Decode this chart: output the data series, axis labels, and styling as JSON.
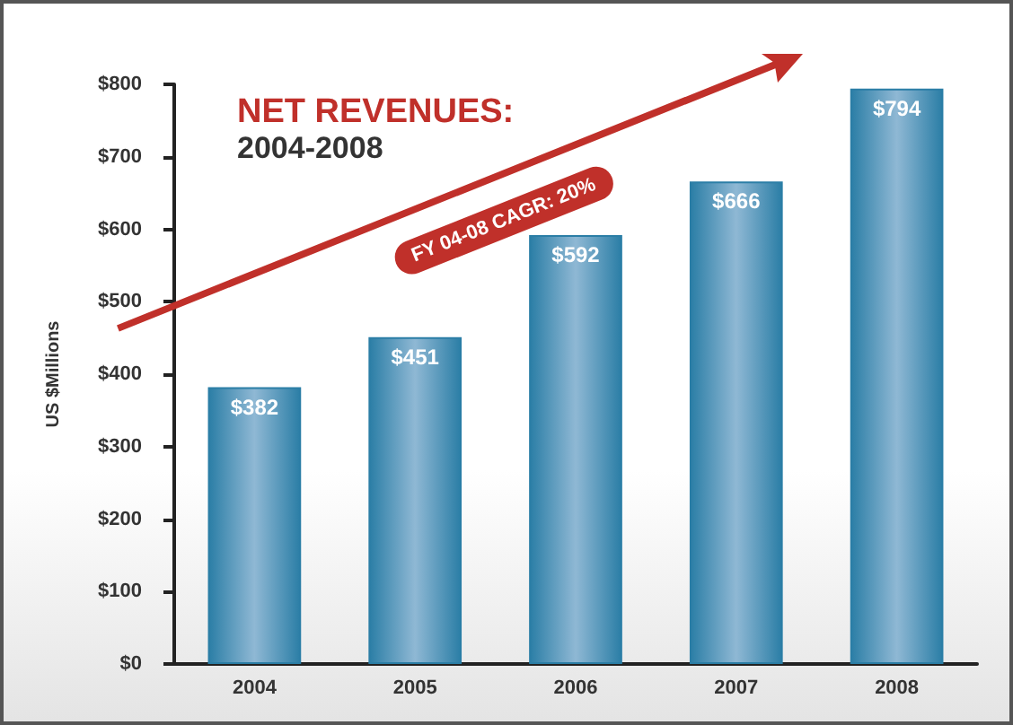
{
  "chart_data": {
    "type": "bar",
    "title": "NET REVENUES:",
    "subtitle": "2004-2008",
    "ylabel": "US $Millions",
    "categories": [
      "2004",
      "2005",
      "2006",
      "2007",
      "2008"
    ],
    "values": [
      382,
      451,
      592,
      666,
      794
    ],
    "value_labels": [
      "$382",
      "$451",
      "$592",
      "$666",
      "$794"
    ],
    "color": "#2b7ea6",
    "ylim": [
      0,
      800
    ],
    "yticks": [
      {
        "value": 0,
        "label": "$0"
      },
      {
        "value": 100,
        "label": "$100"
      },
      {
        "value": 200,
        "label": "$200"
      },
      {
        "value": 300,
        "label": "$300"
      },
      {
        "value": 400,
        "label": "$400"
      },
      {
        "value": 500,
        "label": "$500"
      },
      {
        "value": 600,
        "label": "$600"
      },
      {
        "value": 700,
        "label": "$700"
      },
      {
        "value": 800,
        "label": "$800"
      }
    ],
    "annotations": [
      "FY 04-08 CAGR: 20%"
    ],
    "grid": false
  }
}
